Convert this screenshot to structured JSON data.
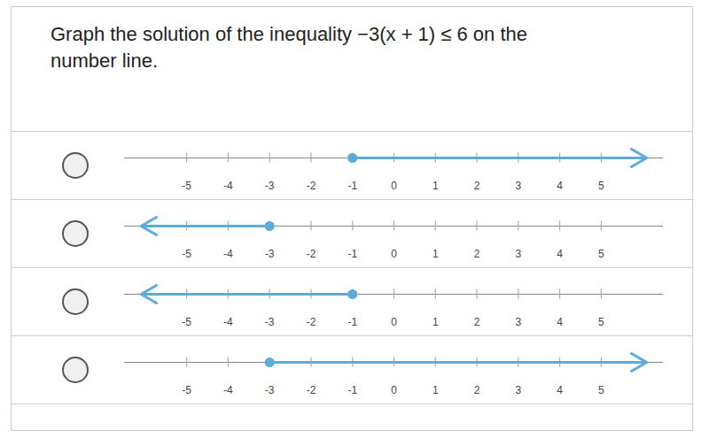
{
  "chart_data": [
    {
      "type": "number_line",
      "title": "Graph the solution of the inequality −3(x + 1) ≤ 6 on the number line.",
      "xlim": [
        -6.5,
        6.5
      ],
      "xticks": [
        -5,
        -4,
        -3,
        -2,
        -1,
        0,
        1,
        2,
        3,
        4,
        5
      ],
      "x": [
        -1,
        6.1
      ],
      "marker": "circle",
      "color": "#5bacd6"
    },
    {
      "type": "number_line",
      "xlim": [
        -6.5,
        6.5
      ],
      "xticks": [
        -5,
        -4,
        -3,
        -2,
        -1,
        0,
        1,
        2,
        3,
        4,
        5
      ],
      "x": [
        -3,
        -6.1
      ],
      "marker": "circle",
      "color": "#5bacd6"
    },
    {
      "type": "number_line",
      "xlim": [
        -6.5,
        6.5
      ],
      "xticks": [
        -5,
        -4,
        -3,
        -2,
        -1,
        0,
        1,
        2,
        3,
        4,
        5
      ],
      "x": [
        -1,
        -6.1
      ],
      "marker": "circle",
      "color": "#5bacd6"
    },
    {
      "type": "number_line",
      "xlim": [
        -6.5,
        6.5
      ],
      "xticks": [
        -5,
        -4,
        -3,
        -2,
        -1,
        0,
        1,
        2,
        3,
        4,
        5
      ],
      "x": [
        -3,
        6.1
      ],
      "marker": "circle",
      "color": "#5bacd6"
    }
  ]
}
